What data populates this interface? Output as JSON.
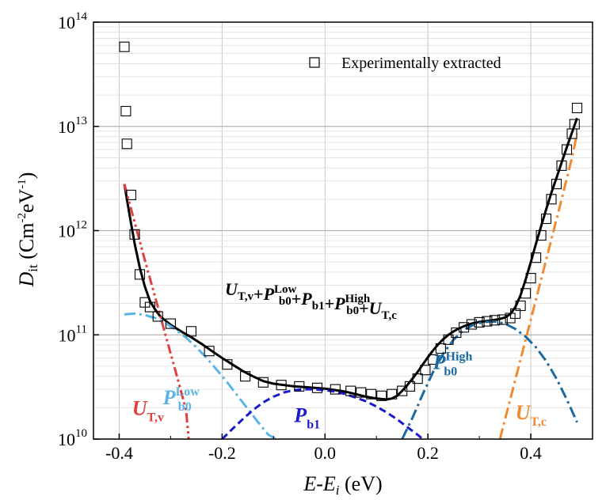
{
  "chart_data": {
    "type": "scatter",
    "title": "",
    "xlabel": {
      "main": "E-E",
      "sub": "i",
      "unit": " (eV)"
    },
    "ylabel": {
      "main": "D",
      "sub": "it",
      "unit": " (Cm",
      "exp1": "-2",
      "mid": "eV",
      "exp2": "-1",
      "close": ")"
    },
    "xlim": [
      -0.45,
      0.52
    ],
    "ylim": [
      10000000000,
      100000000000000
    ],
    "yscale": "log",
    "grid": true,
    "x_ticks": [
      -0.4,
      -0.2,
      0.0,
      0.2,
      0.4
    ],
    "x_tick_labels": [
      "-0.4",
      "-0.2",
      "0.0",
      "0.2",
      "0.4"
    ],
    "y_ticks": [
      10000000000,
      100000000000,
      1000000000000,
      10000000000000,
      100000000000000
    ],
    "y_tick_labels": [
      {
        "base": "10",
        "exp": "10"
      },
      {
        "base": "10",
        "exp": "11"
      },
      {
        "base": "10",
        "exp": "12"
      },
      {
        "base": "10",
        "exp": "13"
      },
      {
        "base": "10",
        "exp": "14"
      }
    ],
    "legend": {
      "placement": "top-center",
      "entries": [
        {
          "label": "Experimentally extracted",
          "marker": "open-square"
        }
      ]
    },
    "formula_label": {
      "parts": [
        {
          "t": "U",
          "sub": "T,v"
        },
        {
          "t": "+"
        },
        {
          "t": "P",
          "sub": "b0",
          "sup": "Low"
        },
        {
          "t": "+"
        },
        {
          "t": "P",
          "sub": "b1"
        },
        {
          "t": "+"
        },
        {
          "t": "P",
          "sub": "b0",
          "sup": "High"
        },
        {
          "t": "+"
        },
        {
          "t": "U",
          "sub": "T,c"
        }
      ]
    },
    "series": [
      {
        "name": "Experimentally extracted",
        "kind": "scatter",
        "marker": "open-square",
        "color": "#000000",
        "x": [
          -0.39,
          -0.387,
          -0.385,
          -0.377,
          -0.37,
          -0.36,
          -0.35,
          -0.34,
          -0.325,
          -0.3,
          -0.26,
          -0.225,
          -0.19,
          -0.155,
          -0.12,
          -0.085,
          -0.05,
          -0.015,
          0.02,
          0.05,
          0.07,
          0.09,
          0.11,
          0.13,
          0.15,
          0.165,
          0.18,
          0.195,
          0.21,
          0.225,
          0.24,
          0.255,
          0.27,
          0.285,
          0.3,
          0.315,
          0.33,
          0.345,
          0.36,
          0.37,
          0.38,
          0.39,
          0.4,
          0.41,
          0.42,
          0.43,
          0.44,
          0.45,
          0.46,
          0.47,
          0.48,
          0.485,
          0.49
        ],
        "y": [
          58000000000000,
          14000000000000,
          6800000000000,
          2200000000000,
          920000000000,
          380000000000,
          205000000000,
          185000000000,
          150000000000,
          128000000000,
          108000000000,
          70000000000,
          52000000000,
          40000000000,
          35000000000,
          33000000000,
          32000000000,
          31000000000,
          30000000000,
          29000000000,
          28000000000,
          27000000000,
          26000000000,
          27000000000,
          29000000000,
          32000000000,
          38000000000,
          46000000000,
          58000000000,
          74000000000,
          90000000000,
          105000000000,
          118000000000,
          126000000000,
          132000000000,
          135000000000,
          138000000000,
          140000000000,
          145000000000,
          160000000000,
          190000000000,
          250000000000,
          350000000000,
          550000000000,
          900000000000,
          1300000000000,
          2000000000000,
          2800000000000,
          4200000000000,
          6000000000000,
          8500000000000,
          10500000000000,
          15000000000000
        ]
      },
      {
        "name": "",
        "kind": "line",
        "style": "solid",
        "color": "#000000",
        "x": [
          -0.39,
          -0.385,
          -0.378,
          -0.37,
          -0.36,
          -0.35,
          -0.34,
          -0.33,
          -0.32,
          -0.3,
          -0.28,
          -0.26,
          -0.24,
          -0.22,
          -0.2,
          -0.18,
          -0.16,
          -0.14,
          -0.12,
          -0.1,
          -0.08,
          -0.06,
          -0.04,
          -0.02,
          0.0,
          0.02,
          0.04,
          0.06,
          0.08,
          0.1,
          0.12,
          0.13,
          0.14,
          0.15,
          0.16,
          0.17,
          0.18,
          0.19,
          0.2,
          0.21,
          0.22,
          0.23,
          0.24,
          0.25,
          0.26,
          0.27,
          0.28,
          0.29,
          0.3,
          0.31,
          0.32,
          0.33,
          0.34,
          0.35,
          0.36,
          0.37,
          0.38,
          0.39,
          0.4,
          0.41,
          0.42,
          0.43,
          0.44,
          0.45,
          0.46,
          0.47,
          0.48,
          0.49
        ],
        "y": [
          2800000000000,
          2000000000000,
          1250000000000,
          750000000000,
          440000000000,
          290000000000,
          210000000000,
          175000000000,
          150000000000,
          125000000000,
          108000000000,
          95000000000,
          82000000000,
          70000000000,
          60000000000,
          52000000000,
          45000000000,
          40000000000,
          36000000000,
          34000000000,
          33000000000,
          32000000000,
          31500000000,
          31000000000,
          30500000000,
          29500000000,
          28500000000,
          27000000000,
          25500000000,
          24500000000,
          24000000000,
          24500000000,
          26000000000,
          29000000000,
          33000000000,
          38000000000,
          44000000000,
          52000000000,
          61000000000,
          71000000000,
          81000000000,
          91000000000,
          100000000000,
          108000000000,
          115000000000,
          121000000000,
          126000000000,
          130000000000,
          133000000000,
          135000000000,
          137000000000,
          139000000000,
          142000000000,
          147000000000,
          158000000000,
          185000000000,
          240000000000,
          340000000000,
          500000000000,
          750000000000,
          1100000000000,
          1600000000000,
          2300000000000,
          3200000000000,
          4500000000000,
          6300000000000,
          8700000000000,
          12000000000000
        ]
      },
      {
        "name": "U_T,v",
        "kind": "line",
        "style": "dashdotdot",
        "color": "#e04040",
        "x": [
          -0.39,
          -0.37,
          -0.35,
          -0.33,
          -0.31,
          -0.29,
          -0.27,
          -0.265
        ],
        "y": [
          2800000000000,
          1200000000000,
          520000000000,
          230000000000,
          100000000000,
          44000000000,
          19000000000,
          10000000000
        ]
      },
      {
        "name": "P_b0^Low",
        "kind": "line",
        "style": "dashdot",
        "color": "#5ab4e6",
        "x": [
          -0.39,
          -0.37,
          -0.35,
          -0.33,
          -0.31,
          -0.29,
          -0.27,
          -0.25,
          -0.23,
          -0.21,
          -0.19,
          -0.17,
          -0.15,
          -0.13,
          -0.11,
          -0.095
        ],
        "y": [
          157000000000,
          160000000000,
          155000000000,
          145000000000,
          130000000000,
          112000000000,
          94000000000,
          76000000000,
          60000000000,
          46000000000,
          35000000000,
          26000000000,
          19500000000,
          14500000000,
          11000000000,
          10000000000
        ]
      },
      {
        "name": "P_b1",
        "kind": "line",
        "style": "dashed",
        "color": "#1a1acc",
        "x": [
          -0.2,
          -0.18,
          -0.16,
          -0.14,
          -0.12,
          -0.1,
          -0.08,
          -0.06,
          -0.04,
          -0.02,
          0.0,
          0.02,
          0.04,
          0.06,
          0.08,
          0.1,
          0.12,
          0.14,
          0.16,
          0.18,
          0.19
        ],
        "y": [
          10000000000,
          12500000000,
          15500000000,
          19000000000,
          22500000000,
          25500000000,
          28000000000,
          29500000000,
          30000000000,
          30000000000,
          29500000000,
          28500000000,
          27000000000,
          25000000000,
          23000000000,
          20500000000,
          18000000000,
          15500000000,
          13000000000,
          11000000000,
          10000000000
        ]
      },
      {
        "name": "P_b0^High",
        "kind": "line",
        "style": "dashdot",
        "color": "#1a6aa0",
        "x": [
          0.15,
          0.17,
          0.19,
          0.21,
          0.23,
          0.25,
          0.27,
          0.29,
          0.31,
          0.33,
          0.35,
          0.37,
          0.39,
          0.41,
          0.43,
          0.45,
          0.47,
          0.49
        ],
        "y": [
          10000000000,
          16000000000,
          27000000000,
          44000000000,
          66000000000,
          90000000000,
          112000000000,
          126000000000,
          133000000000,
          134000000000,
          128000000000,
          114000000000,
          96000000000,
          76000000000,
          56000000000,
          38000000000,
          24000000000,
          14500000000
        ]
      },
      {
        "name": "U_T,c",
        "kind": "line",
        "style": "dashdot",
        "color": "#f08a30",
        "x": [
          0.34,
          0.36,
          0.38,
          0.4,
          0.42,
          0.44,
          0.46,
          0.48,
          0.49
        ],
        "y": [
          10000000000,
          24000000000,
          58000000000,
          140000000000,
          340000000000,
          820000000000,
          2000000000000,
          5000000000000,
          8500000000000
        ]
      }
    ],
    "curve_labels": [
      {
        "series": 2,
        "text": "U",
        "sub": "T,v",
        "color": "#e04040"
      },
      {
        "series": 3,
        "text": "P",
        "sub": "b0",
        "sup": "Low",
        "color": "#5ab4e6"
      },
      {
        "series": 4,
        "text": "P",
        "sub": "b1",
        "color": "#1a1acc"
      },
      {
        "series": 5,
        "text": "P",
        "sub": "b0",
        "sup": "High",
        "color": "#1a6aa0"
      },
      {
        "series": 6,
        "text": "U",
        "sub": "T,c",
        "color": "#f08a30"
      }
    ]
  }
}
